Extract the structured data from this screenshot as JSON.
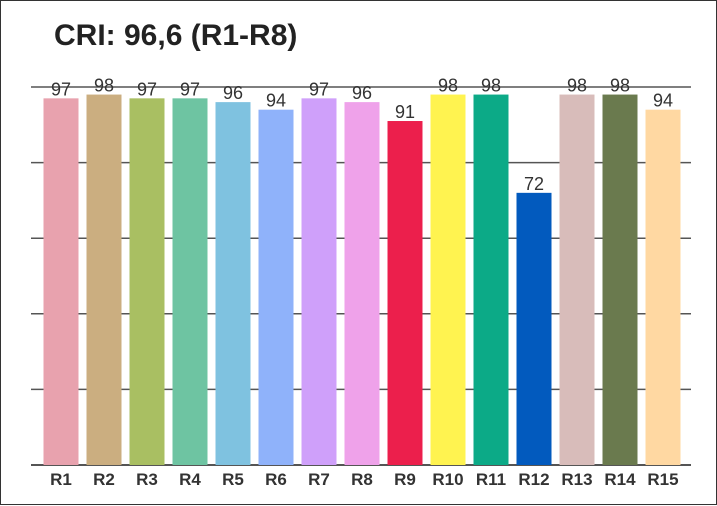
{
  "chart_data": {
    "type": "bar",
    "title": "CRI: 96,6 (R1-R8)",
    "xlabel": "",
    "ylabel": "",
    "ylim": [
      0,
      100
    ],
    "grid": true,
    "categories": [
      "R1",
      "R2",
      "R3",
      "R4",
      "R5",
      "R6",
      "R7",
      "R8",
      "R9",
      "R10",
      "R11",
      "R12",
      "R13",
      "R14",
      "R15"
    ],
    "values": [
      97,
      98,
      97,
      97,
      96,
      94,
      97,
      96,
      91,
      98,
      98,
      72,
      98,
      98,
      94
    ],
    "colors": [
      "#E8A2AE",
      "#CBAE80",
      "#A9BF62",
      "#6EC4A2",
      "#7FC2E0",
      "#8FB2FA",
      "#CFA0FA",
      "#EFA2EA",
      "#EC1F4C",
      "#FFF350",
      "#0CAA87",
      "#025ABE",
      "#D8BCBA",
      "#6A7A4E",
      "#FFD8A2"
    ]
  }
}
